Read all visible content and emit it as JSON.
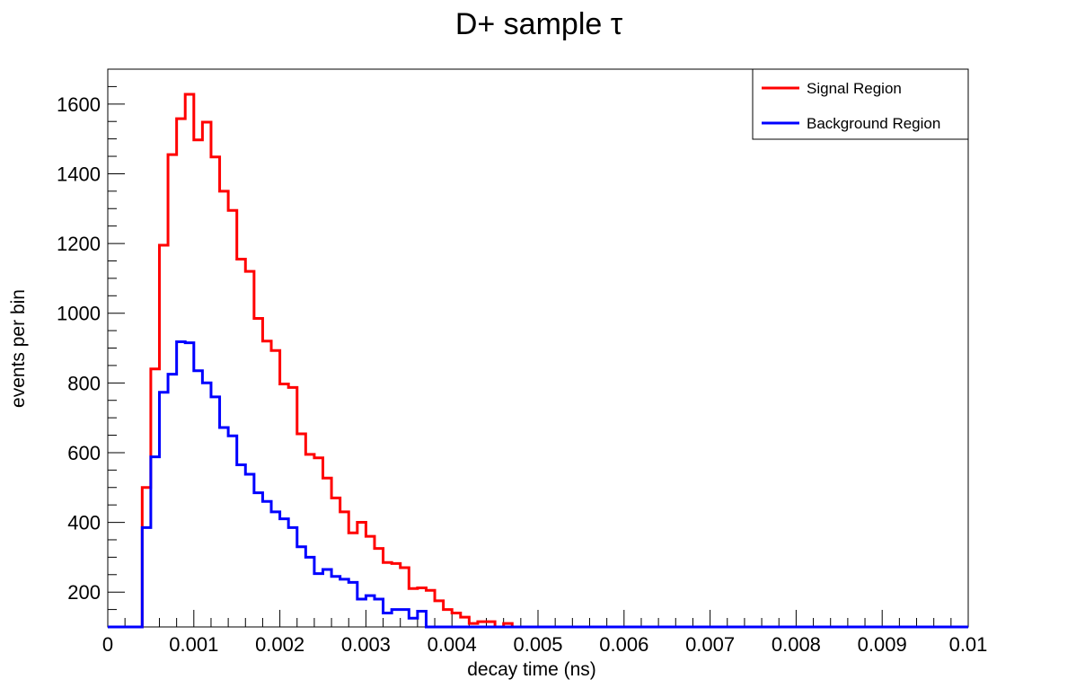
{
  "chart_data": {
    "type": "line",
    "title": "D+ sample τ",
    "xlabel": "decay time (ns)",
    "ylabel": "events per bin",
    "xlim": [
      0,
      0.01
    ],
    "ylim": [
      100,
      1700
    ],
    "bin_width": 0.0001,
    "x_tick_labels": [
      "0",
      "0.001",
      "0.002",
      "0.003",
      "0.004",
      "0.005",
      "0.006",
      "0.007",
      "0.008",
      "0.009",
      "0.01"
    ],
    "y_tick_labels": [
      "200",
      "400",
      "600",
      "800",
      "1000",
      "1200",
      "1400",
      "1600"
    ],
    "y_tick_values": [
      200,
      400,
      600,
      800,
      1000,
      1200,
      1400,
      1600
    ],
    "legend_position": "top-right",
    "colors": {
      "signal": "#ff0000",
      "background": "#0000ff"
    },
    "series": [
      {
        "name": "Signal Region",
        "color": "#ff0000",
        "values": [
          100,
          100,
          100,
          100,
          500,
          840,
          1195,
          1455,
          1558,
          1628,
          1497,
          1548,
          1448,
          1350,
          1295,
          1155,
          1120,
          985,
          920,
          893,
          797,
          787,
          654,
          595,
          585,
          527,
          470,
          430,
          370,
          400,
          360,
          325,
          285,
          282,
          270,
          210,
          212,
          205,
          175,
          150,
          140,
          128,
          110,
          115,
          115,
          100,
          110,
          100,
          100,
          100,
          100,
          100,
          100,
          100,
          100,
          100,
          100,
          100,
          100,
          100,
          100,
          100,
          100,
          100,
          100,
          100,
          100,
          100,
          100,
          100,
          100,
          100,
          100,
          100,
          100,
          100,
          100,
          100,
          100,
          100,
          100,
          100,
          100,
          100,
          100,
          100,
          100,
          100,
          100,
          100,
          100,
          100,
          100,
          100,
          100,
          100,
          100,
          100,
          100,
          100
        ]
      },
      {
        "name": "Background Region",
        "color": "#0000ff",
        "values": [
          100,
          100,
          100,
          100,
          385,
          588,
          773,
          825,
          918,
          915,
          835,
          800,
          760,
          672,
          648,
          565,
          538,
          485,
          460,
          430,
          410,
          385,
          330,
          300,
          253,
          265,
          245,
          237,
          228,
          180,
          190,
          180,
          140,
          150,
          150,
          125,
          145,
          100,
          100,
          100,
          100,
          100,
          100,
          100,
          100,
          100,
          100,
          100,
          100,
          100,
          100,
          100,
          100,
          100,
          100,
          100,
          100,
          100,
          100,
          100,
          100,
          100,
          100,
          100,
          100,
          100,
          100,
          100,
          100,
          100,
          100,
          100,
          100,
          100,
          100,
          100,
          100,
          100,
          100,
          100,
          100,
          100,
          100,
          100,
          100,
          100,
          100,
          100,
          100,
          100,
          100,
          100,
          100,
          100,
          100,
          100,
          100,
          100,
          100,
          100
        ]
      }
    ]
  }
}
